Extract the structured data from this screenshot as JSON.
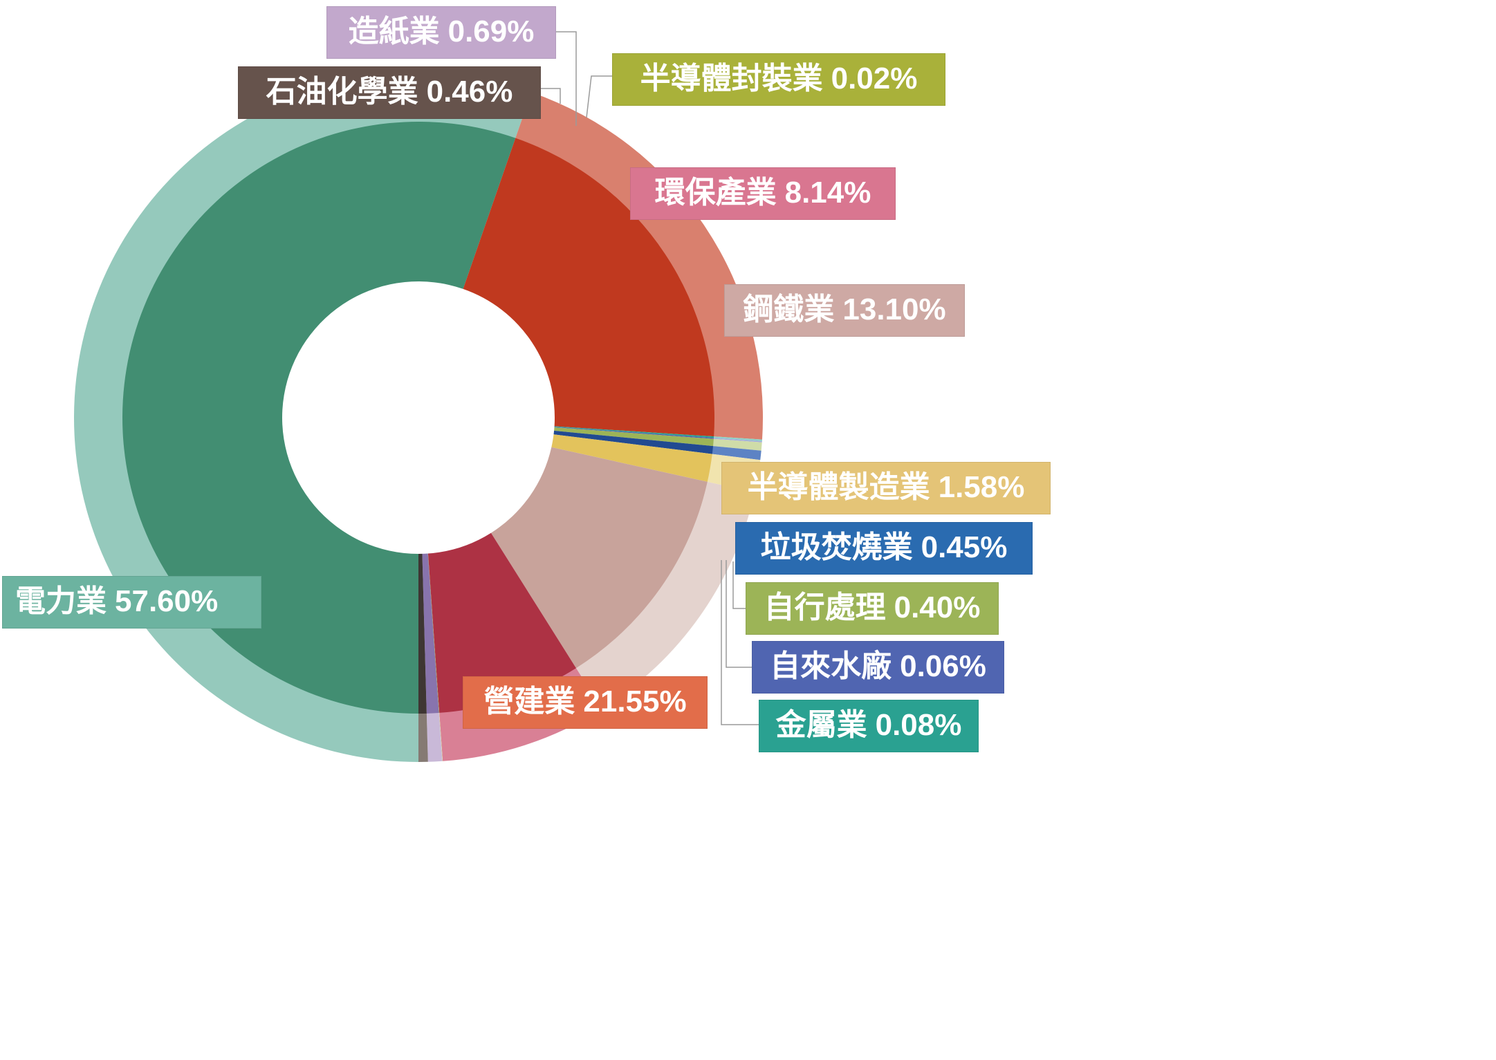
{
  "chart_data": {
    "type": "pie",
    "variant": "donut",
    "title": "",
    "series": [
      {
        "name": "電力業",
        "label": "電力業",
        "pct": "57.60%",
        "value": 57.6,
        "color": "#428e72",
        "light": "#95c9bc",
        "label_bg": "#6cb3a0"
      },
      {
        "name": "營建業",
        "label": "營建業",
        "pct": "21.55%",
        "value": 21.55,
        "color": "#c0391f",
        "light": "#d9806e",
        "label_bg": "#e26d4a"
      },
      {
        "name": "金屬業",
        "label": "金屬業",
        "pct": "0.08%",
        "value": 0.08,
        "color": "#2aa191",
        "light": "#8fd0c6",
        "label_bg": "#2aa191"
      },
      {
        "name": "自來水廠",
        "label": "自來水廠",
        "pct": "0.06%",
        "value": 0.06,
        "color": "#4e62b0",
        "light": "#a3aedc",
        "label_bg": "#5065b1"
      },
      {
        "name": "自行處理",
        "label": "自行處理",
        "pct": "0.40%",
        "value": 0.4,
        "color": "#9cb457",
        "light": "#cfdca8",
        "label_bg": "#9cb457"
      },
      {
        "name": "垃圾焚燒業",
        "label": "垃圾焚燒業",
        "pct": "0.45%",
        "value": 0.45,
        "color": "#214a91",
        "light": "#5d83c4",
        "label_bg": "#2a6bb0"
      },
      {
        "name": "半導體製造業",
        "label": "半導體製造業",
        "pct": "1.58%",
        "value": 1.58,
        "color": "#e3c35c",
        "light": "#f1e4ae",
        "label_bg": "#e4c477"
      },
      {
        "name": "鋼鐵業",
        "label": "鋼鐵業",
        "pct": "13.10%",
        "value": 13.1,
        "color": "#c8a39b",
        "light": "#e4d3ce",
        "label_bg": "#cea9a4"
      },
      {
        "name": "環保產業",
        "label": "環保產業",
        "pct": "8.14%",
        "value": 8.14,
        "color": "#ad3244",
        "light": "#d98095",
        "label_bg": "#d97690"
      },
      {
        "name": "半導體封裝業",
        "label": "半導體封裝業",
        "pct": "0.02%",
        "value": 0.02,
        "color": "#a9ae35",
        "light": "#d6d89a",
        "label_bg": "#a9b13a"
      },
      {
        "name": "造紙業",
        "label": "造紙業",
        "pct": "0.69%",
        "value": 0.69,
        "color": "#8874ad",
        "light": "#c9b9d8",
        "label_bg": "#c2a8cc"
      },
      {
        "name": "石油化學業",
        "label": "石油化學業",
        "pct": "0.46%",
        "value": 0.46,
        "color": "#3e3633",
        "light": "#857a73",
        "label_bg": "#66534c"
      }
    ]
  }
}
